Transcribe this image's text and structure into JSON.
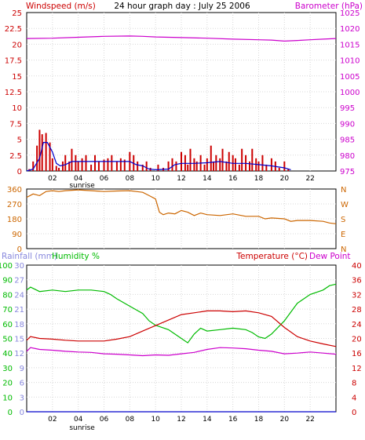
{
  "chart_data": [
    {
      "type": "line",
      "title": "24 hour graph day : July 25 2006",
      "left_label": "Windspeed (m/s)",
      "right_label": "Barometer (hPa)",
      "left_ticks": [
        "0",
        "2.5",
        "5",
        "7.5",
        "10",
        "12.5",
        "15",
        "17.5",
        "20",
        "22.5",
        "25"
      ],
      "right_ticks": [
        "975",
        "980",
        "985",
        "990",
        "995",
        "1000",
        "1005",
        "1010",
        "1015",
        "1020",
        "1025"
      ],
      "x_ticks": [
        "02",
        "04",
        "06",
        "08",
        "10",
        "12",
        "14",
        "16",
        "18",
        "20",
        "22"
      ],
      "sunrise_label": "sunrise",
      "y_left_range": [
        0,
        25
      ],
      "y_right_range": [
        975,
        1025
      ],
      "x_range": [
        0,
        24
      ],
      "sunrise_hour": 4.3,
      "grid": true,
      "series": [
        {
          "name": "Windspeed (m/s)",
          "color": "#cc0000",
          "axis": "left",
          "style": "bars",
          "x": [
            0.2,
            0.5,
            0.8,
            1.0,
            1.2,
            1.5,
            1.8,
            2.0,
            2.3,
            2.5,
            2.8,
            3.0,
            3.3,
            3.5,
            3.8,
            4.0,
            4.3,
            4.6,
            5.0,
            5.3,
            5.6,
            6.0,
            6.3,
            6.6,
            7.0,
            7.3,
            7.6,
            8.0,
            8.3,
            8.6,
            9.0,
            9.3,
            9.6,
            10.2,
            10.6,
            11.0,
            11.3,
            11.6,
            12.0,
            12.3,
            12.5,
            12.7,
            13.0,
            13.2,
            13.5,
            13.8,
            14.0,
            14.3,
            14.5,
            14.7,
            15.0,
            15.2,
            15.5,
            15.7,
            16.0,
            16.2,
            16.5,
            16.7,
            17.0,
            17.3,
            17.5,
            17.8,
            18.0,
            18.3,
            18.6,
            19.0,
            19.3,
            19.6,
            20.0,
            20.3
          ],
          "y": [
            0.3,
            1.5,
            4.0,
            6.5,
            5.8,
            6.0,
            4.5,
            2.0,
            0.8,
            0.5,
            1.5,
            2.5,
            1.5,
            3.5,
            2.5,
            1.5,
            2.0,
            2.5,
            1.0,
            2.5,
            1.5,
            1.8,
            2.0,
            2.5,
            1.5,
            2.0,
            1.8,
            3.0,
            2.5,
            1.5,
            1.0,
            1.5,
            0.5,
            1.0,
            0.5,
            1.5,
            2.0,
            1.5,
            3.0,
            2.5,
            1.0,
            3.5,
            2.0,
            1.5,
            2.5,
            1.0,
            2.0,
            4.0,
            1.5,
            2.5,
            2.0,
            3.5,
            1.5,
            3.0,
            2.5,
            2.0,
            1.0,
            3.5,
            2.5,
            1.5,
            3.5,
            2.0,
            1.5,
            2.5,
            1.0,
            2.0,
            1.5,
            0.5,
            1.5,
            0.3
          ]
        },
        {
          "name": "Windspeed average",
          "color": "#0000cc",
          "axis": "left",
          "style": "line",
          "x": [
            0,
            0.5,
            1.0,
            1.3,
            1.6,
            2.0,
            2.3,
            2.6,
            3.0,
            3.5,
            4.0,
            5.0,
            6.0,
            7.0,
            8.0,
            8.5,
            9.0,
            9.5,
            10.0,
            11.0,
            11.5,
            12.0,
            13.0,
            14.0,
            15.0,
            16.0,
            17.0,
            18.0,
            19.0,
            20.0,
            20.5
          ],
          "y": [
            0,
            0.3,
            2.0,
            4.5,
            4.5,
            3.0,
            1.2,
            0.8,
            1.0,
            1.5,
            1.5,
            1.5,
            1.5,
            1.5,
            1.5,
            1.0,
            0.8,
            0.3,
            0.2,
            0.3,
            1.0,
            1.2,
            1.2,
            1.3,
            1.5,
            1.2,
            1.2,
            1.0,
            0.8,
            0.5,
            0.2
          ]
        },
        {
          "name": "Barometer (hPa)",
          "color": "#cc00cc",
          "axis": "right",
          "style": "line",
          "x": [
            0,
            2,
            4,
            6,
            8,
            9,
            10,
            12,
            14,
            16,
            18,
            19,
            20,
            21,
            22,
            23,
            24
          ],
          "y": [
            1016.8,
            1016.9,
            1017.2,
            1017.5,
            1017.6,
            1017.5,
            1017.3,
            1017.1,
            1016.9,
            1016.6,
            1016.4,
            1016.3,
            1016.0,
            1016.2,
            1016.4,
            1016.6,
            1016.8
          ]
        }
      ]
    },
    {
      "type": "line",
      "left_ticks": [
        "0",
        "90",
        "180",
        "270",
        "360"
      ],
      "right_ticks": [
        "N",
        "E",
        "S",
        "W",
        "N"
      ],
      "x_range": [
        0,
        24
      ],
      "y_range": [
        0,
        360
      ],
      "grid": true,
      "series": [
        {
          "name": "Wind direction",
          "color": "#cc6600",
          "axis": "left",
          "style": "line",
          "x": [
            0,
            0.5,
            1.0,
            1.5,
            2,
            2.5,
            3,
            4,
            5,
            6,
            7,
            8,
            8.5,
            9,
            9.5,
            10,
            10.3,
            10.6,
            11,
            11.5,
            12,
            12.5,
            13,
            13.5,
            14,
            15,
            16,
            17,
            18,
            18.5,
            19,
            20,
            20.5,
            21,
            22,
            23,
            23.5,
            24
          ],
          "y": [
            310,
            330,
            320,
            345,
            350,
            345,
            350,
            355,
            350,
            345,
            348,
            350,
            345,
            340,
            320,
            300,
            220,
            205,
            215,
            210,
            230,
            220,
            200,
            215,
            205,
            200,
            210,
            195,
            195,
            180,
            185,
            180,
            165,
            170,
            170,
            165,
            155,
            150
          ]
        }
      ]
    },
    {
      "type": "line",
      "left_label_rain": "Rainfall (mm)",
      "left_label_hum": "Humidity %",
      "right_label_temp": "Temperature (°C)",
      "right_label_dew": "Dew Point",
      "rain_ticks": [
        "0",
        "3",
        "6",
        "9",
        "12",
        "15",
        "18",
        "21",
        "24",
        "27",
        "30"
      ],
      "hum_ticks": [
        "0",
        "10",
        "20",
        "30",
        "40",
        "50",
        "60",
        "70",
        "80",
        "90",
        "100"
      ],
      "temp_ticks": [
        "0",
        "4",
        "8",
        "12",
        "16",
        "20",
        "24",
        "28",
        "32",
        "36",
        "40"
      ],
      "x_ticks": [
        "02",
        "04",
        "06",
        "08",
        "10",
        "12",
        "14",
        "16",
        "18",
        "20",
        "22"
      ],
      "sunrise_label": "sunrise",
      "x_range": [
        0,
        24
      ],
      "sunrise_hour": 4.3,
      "rain_range": [
        0,
        30
      ],
      "hum_range": [
        0,
        100
      ],
      "temp_range": [
        0,
        40
      ],
      "grid": true,
      "series": [
        {
          "name": "Humidity %",
          "color": "#00bb00",
          "axis": "hum",
          "style": "line",
          "x": [
            0,
            0.3,
            1,
            2,
            3,
            4,
            5,
            6,
            6.5,
            7,
            8,
            9,
            9.5,
            10,
            11,
            11.5,
            12,
            12.5,
            13,
            13.5,
            14,
            15,
            16,
            17,
            17.5,
            18,
            18.5,
            19,
            20,
            21,
            21.5,
            22,
            23,
            23.5,
            24
          ],
          "y": [
            83,
            85,
            82,
            83,
            82,
            83,
            83,
            82,
            80,
            77,
            72,
            67,
            62,
            59,
            56,
            53,
            50,
            47,
            53,
            57,
            55,
            56,
            57,
            56,
            54,
            51,
            50,
            53,
            62,
            74,
            77,
            80,
            83,
            86,
            87
          ]
        },
        {
          "name": "Temperature (°C)",
          "color": "#cc0000",
          "axis": "temp",
          "style": "line",
          "x": [
            0,
            0.3,
            1,
            2,
            3,
            4,
            5,
            6,
            7,
            8,
            9,
            10,
            11,
            12,
            13,
            14,
            15,
            16,
            17,
            18,
            19,
            20,
            21,
            22,
            23,
            24
          ],
          "y": [
            19.5,
            20.5,
            20,
            19.8,
            19.5,
            19.3,
            19.3,
            19.3,
            19.8,
            20.5,
            22,
            23.5,
            25,
            26.5,
            27,
            27.5,
            27.5,
            27.3,
            27.5,
            27,
            26,
            23,
            20.5,
            19.3,
            18.5,
            17.8
          ]
        },
        {
          "name": "Dew Point",
          "color": "#cc00cc",
          "axis": "temp",
          "style": "line",
          "x": [
            0,
            0.3,
            1,
            2,
            3,
            4,
            5,
            6,
            7,
            8,
            9,
            10,
            11,
            12,
            13,
            14,
            15,
            16,
            17,
            18,
            19,
            20,
            21,
            22,
            23,
            24
          ],
          "y": [
            16.5,
            17.5,
            17,
            16.8,
            16.5,
            16.3,
            16.2,
            15.8,
            15.7,
            15.5,
            15.3,
            15.5,
            15.4,
            15.8,
            16.2,
            17,
            17.5,
            17.4,
            17.2,
            16.8,
            16.5,
            15.8,
            16,
            16.3,
            16,
            15.7
          ]
        },
        {
          "name": "Rainfall (mm)",
          "color": "#0000cc",
          "axis": "rain",
          "style": "line",
          "x": [
            0,
            24
          ],
          "y": [
            0,
            0
          ]
        }
      ]
    }
  ]
}
